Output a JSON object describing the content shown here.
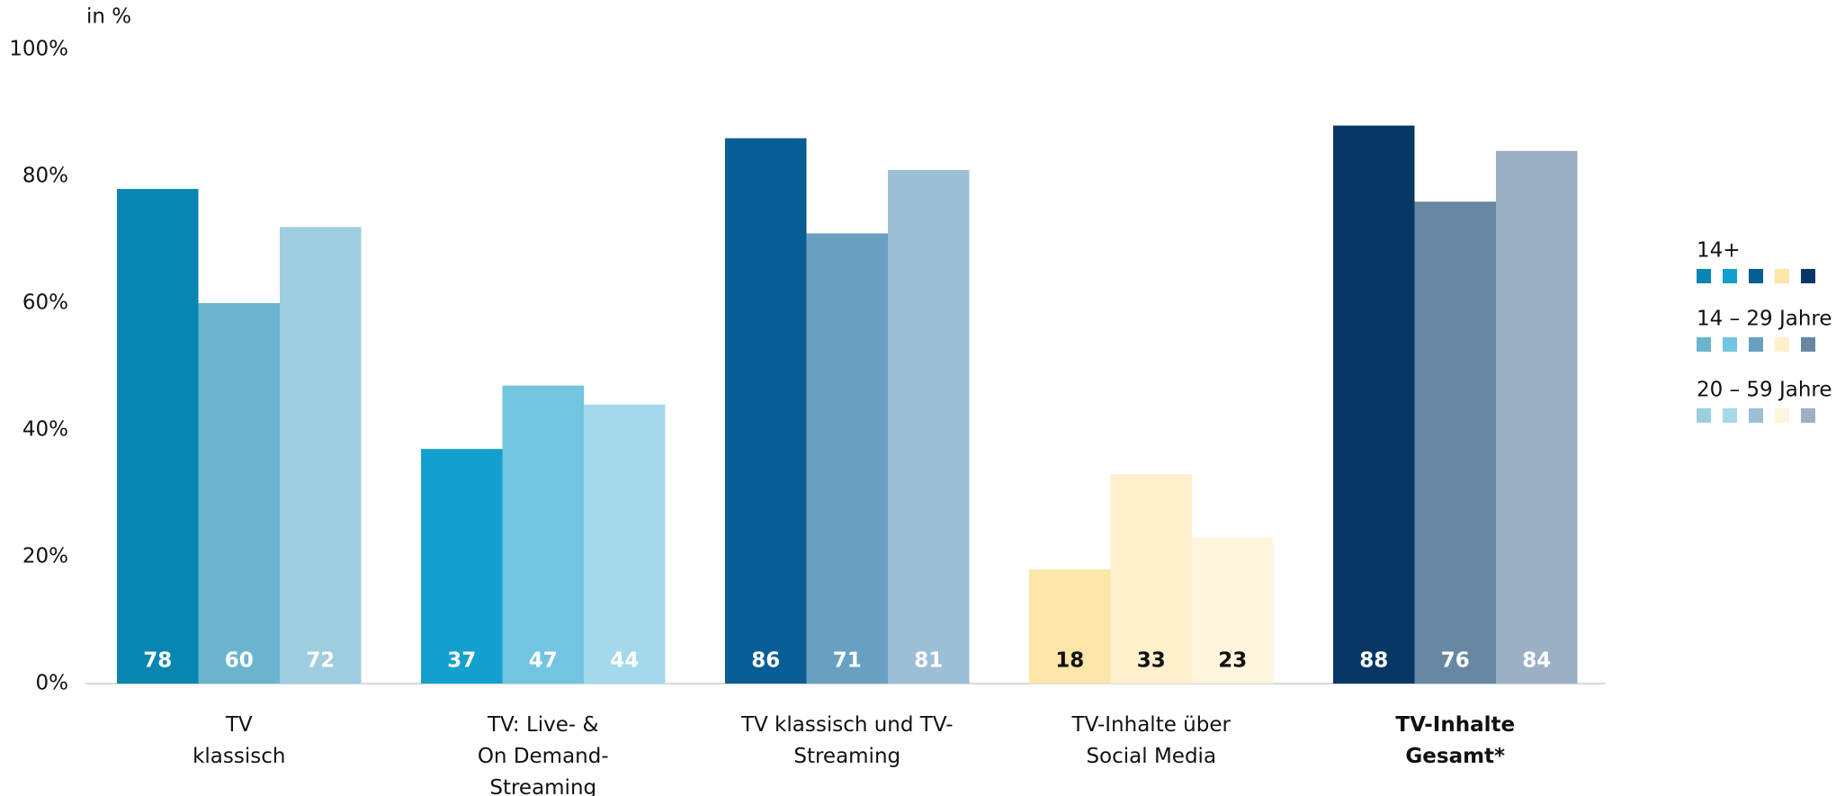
{
  "chart_data": {
    "type": "grouped_bar",
    "y_axis_label": "in %",
    "categories": [
      "TV\nklassisch",
      "TV: Live- &\nOn Demand-\nStreaming",
      "TV klassisch und TV-\nStreaming",
      "TV-Inhalte über\nSocial Media",
      "TV-Inhalte\nGesamt*"
    ],
    "series": [
      {
        "name": "14+",
        "values": [
          78,
          37,
          86,
          18,
          88
        ],
        "colors": [
          "#0786b1",
          "#14a0cf",
          "#065e95",
          "#fee5a8",
          "#073865"
        ]
      },
      {
        "name": "14 – 29 Jahre",
        "values": [
          60,
          47,
          71,
          33,
          76
        ],
        "colors": [
          "#6ab5cd",
          "#72c4e0",
          "#69a0c1",
          "#feefcd",
          "#6887a2"
        ]
      },
      {
        "name": "20 – 59 Jahre",
        "values": [
          72,
          44,
          81,
          23,
          84
        ],
        "colors": [
          "#9dcddf",
          "#a3d9ea",
          "#9dbfd6",
          "#fff4dc",
          "#9ab0c5"
        ]
      }
    ],
    "ylim": [
      0,
      100
    ],
    "yticks": [
      {
        "value": 0,
        "label": "0%"
      },
      {
        "value": 20,
        "label": "20%"
      },
      {
        "value": 40,
        "label": "40%"
      },
      {
        "value": 60,
        "label": "60%"
      },
      {
        "value": 80,
        "label": "80%"
      },
      {
        "value": 100,
        "label": "100%"
      }
    ],
    "legend": "right"
  }
}
